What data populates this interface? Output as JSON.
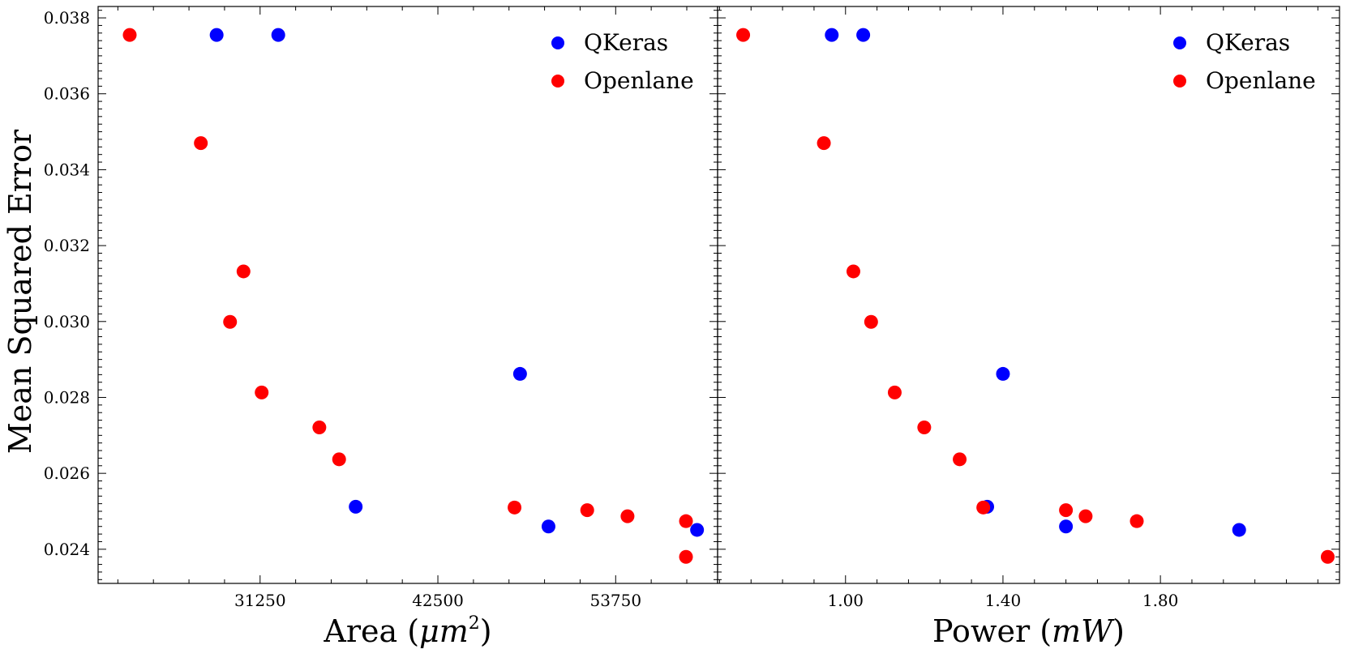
{
  "figure": {
    "ylabel": "Mean Squared Error"
  },
  "chart_data": [
    {
      "type": "scatter",
      "xlabel_text": "Area (",
      "xlabel_var": "μm",
      "xlabel_sup": "2",
      "xlabel_close": ")",
      "ylabel": "Mean Squared Error",
      "xlim": [
        21000,
        60200
      ],
      "ylim": [
        0.0231,
        0.0383
      ],
      "xticks": [
        31250,
        42500,
        53750
      ],
      "xtick_labels": [
        "31250",
        "42500",
        "53750"
      ],
      "yticks": [
        0.024,
        0.026,
        0.028,
        0.03,
        0.032,
        0.034,
        0.036,
        0.038
      ],
      "ytick_labels": [
        "0.024",
        "0.026",
        "0.028",
        "0.030",
        "0.032",
        "0.034",
        "0.036",
        "0.038"
      ],
      "grid": false,
      "legend_position": "top-right",
      "series": [
        {
          "name": "QKeras",
          "color": "#0000ff",
          "points": [
            {
              "x": 28500,
              "y": 0.03755
            },
            {
              "x": 32400,
              "y": 0.03755
            },
            {
              "x": 37300,
              "y": 0.02512
            },
            {
              "x": 47700,
              "y": 0.02862
            },
            {
              "x": 49500,
              "y": 0.0246
            },
            {
              "x": 58900,
              "y": 0.02451
            }
          ]
        },
        {
          "name": "Openlane",
          "color": "#ff0000",
          "points": [
            {
              "x": 23000,
              "y": 0.03755
            },
            {
              "x": 27500,
              "y": 0.0347
            },
            {
              "x": 30200,
              "y": 0.03132
            },
            {
              "x": 29350,
              "y": 0.02999
            },
            {
              "x": 31350,
              "y": 0.02813
            },
            {
              "x": 35000,
              "y": 0.02721
            },
            {
              "x": 36250,
              "y": 0.02637
            },
            {
              "x": 47350,
              "y": 0.0251
            },
            {
              "x": 51950,
              "y": 0.02503
            },
            {
              "x": 54500,
              "y": 0.02487
            },
            {
              "x": 58200,
              "y": 0.02474
            },
            {
              "x": 58200,
              "y": 0.0238
            }
          ]
        }
      ]
    },
    {
      "type": "scatter",
      "xlabel_text": "Power (",
      "xlabel_var": "mW",
      "xlabel_sup": "",
      "xlabel_close": ")",
      "xlim": [
        0.675,
        2.255
      ],
      "ylim": [
        0.0231,
        0.0383
      ],
      "xticks": [
        1.0,
        1.4,
        1.8
      ],
      "xtick_labels": [
        "1.00",
        "1.40",
        "1.80"
      ],
      "yticks": [
        0.024,
        0.026,
        0.028,
        0.03,
        0.032,
        0.034,
        0.036,
        0.038
      ],
      "grid": false,
      "legend_position": "top-right",
      "series": [
        {
          "name": "QKeras",
          "color": "#0000ff",
          "points": [
            {
              "x": 0.965,
              "y": 0.03755
            },
            {
              "x": 1.045,
              "y": 0.03755
            },
            {
              "x": 1.36,
              "y": 0.02512
            },
            {
              "x": 1.4,
              "y": 0.02862
            },
            {
              "x": 1.56,
              "y": 0.0246
            },
            {
              "x": 2.0,
              "y": 0.02451
            }
          ]
        },
        {
          "name": "Openlane",
          "color": "#ff0000",
          "points": [
            {
              "x": 0.74,
              "y": 0.03755
            },
            {
              "x": 0.945,
              "y": 0.0347
            },
            {
              "x": 1.02,
              "y": 0.03132
            },
            {
              "x": 1.065,
              "y": 0.02999
            },
            {
              "x": 1.125,
              "y": 0.02813
            },
            {
              "x": 1.2,
              "y": 0.02721
            },
            {
              "x": 1.29,
              "y": 0.02637
            },
            {
              "x": 1.35,
              "y": 0.0251
            },
            {
              "x": 1.56,
              "y": 0.02503
            },
            {
              "x": 1.61,
              "y": 0.02487
            },
            {
              "x": 1.74,
              "y": 0.02474
            },
            {
              "x": 2.225,
              "y": 0.0238
            }
          ]
        }
      ]
    }
  ]
}
